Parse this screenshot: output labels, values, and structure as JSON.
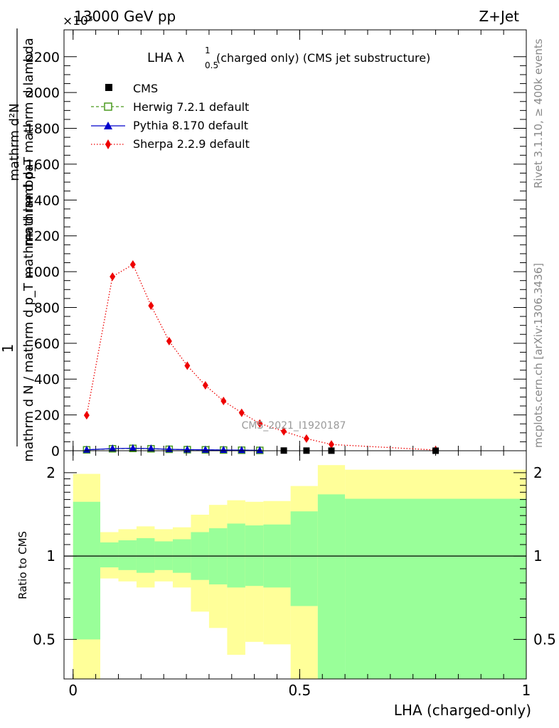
{
  "header": {
    "left": "13000 GeV pp",
    "right": "Z+Jet",
    "exponent": "×10³"
  },
  "side_labels": {
    "rivet": "Rivet 3.1.10, ≥ 400k events",
    "mcplots": "mcplots.cern.ch [arXiv:1306.3436]"
  },
  "chart_data": [
    {
      "type": "line",
      "title_main": "LHA λ",
      "title_sup": "1",
      "title_sub": "0.5",
      "title_rest": "(charged only) (CMS jet substructure)",
      "watermark": "CMS_2021_I1920187",
      "ylabel_top": "mathrm d²N",
      "ylabel_mid": "1",
      "ylabel_bottom": "mathrm d N / mathrm d p_T mathrm d lambda",
      "ylabel_middle2": "mathrm d p_T mathrm d lambda",
      "ylim": [
        0,
        2350
      ],
      "yticks": [
        0,
        200,
        400,
        600,
        800,
        1000,
        1200,
        1400,
        1600,
        1800,
        2000,
        2200
      ],
      "xlim": [
        -0.02,
        1.0
      ],
      "legend": [
        {
          "name": "CMS",
          "color": "#000000"
        },
        {
          "name": "Herwig 7.2.1 default",
          "color": "#4a9a1f"
        },
        {
          "name": "Pythia 8.170 default",
          "color": "#0000cc"
        },
        {
          "name": "Sherpa 2.2.9 default",
          "color": "#ee0000"
        }
      ],
      "series": [
        {
          "name": "Sherpa 2.2.9 default",
          "x": [
            0.03,
            0.087,
            0.132,
            0.172,
            0.212,
            0.252,
            0.292,
            0.332,
            0.372,
            0.412,
            0.465,
            0.515,
            0.57,
            0.8
          ],
          "y": [
            198,
            972,
            1040,
            810,
            612,
            475,
            365,
            278,
            212,
            152,
            108,
            68,
            35,
            4
          ]
        },
        {
          "name": "CMS",
          "x": [
            0.03,
            0.087,
            0.132,
            0.172,
            0.212,
            0.252,
            0.292,
            0.332,
            0.372,
            0.412,
            0.465,
            0.515,
            0.57,
            0.8
          ],
          "y": [
            4,
            10,
            12,
            10,
            7,
            5,
            4,
            3,
            2,
            1.5,
            1,
            0.7,
            0.4,
            0.1
          ]
        },
        {
          "name": "Herwig 7.2.1 default",
          "x": [
            0.03,
            0.087,
            0.132,
            0.172,
            0.212,
            0.252,
            0.292,
            0.332,
            0.372,
            0.412
          ],
          "y": [
            5,
            11,
            13,
            11,
            8,
            6,
            5,
            4,
            3,
            2
          ]
        },
        {
          "name": "Pythia 8.170 default",
          "x": [
            0.03,
            0.087,
            0.132,
            0.172,
            0.212,
            0.252,
            0.292,
            0.332,
            0.372,
            0.412
          ],
          "y": [
            5,
            12,
            14,
            12,
            8,
            6,
            5,
            4,
            3,
            2
          ]
        }
      ]
    },
    {
      "type": "area",
      "ylabel": "Ratio to CMS",
      "xlabel": "LHA (charged-only)",
      "ylim": [
        0.36,
        2.4
      ],
      "ytick_labels": [
        "0.5",
        "1",
        "2"
      ],
      "ytick_values": [
        0.5,
        1,
        2
      ],
      "xtick_labels": [
        "0",
        "0.5",
        "1"
      ],
      "xtick_values": [
        0,
        0.5,
        1
      ],
      "xlim": [
        -0.02,
        1.0
      ],
      "bins": [
        0,
        0.06,
        0.1,
        0.14,
        0.18,
        0.22,
        0.26,
        0.3,
        0.34,
        0.38,
        0.42,
        0.48,
        0.54,
        0.6,
        1.0
      ],
      "green_upper": [
        1.57,
        1.12,
        1.14,
        1.16,
        1.13,
        1.15,
        1.22,
        1.26,
        1.31,
        1.29,
        1.3,
        1.45,
        1.67,
        1.61
      ],
      "green_lower": [
        0.5,
        0.91,
        0.89,
        0.87,
        0.89,
        0.87,
        0.82,
        0.79,
        0.77,
        0.78,
        0.77,
        0.66,
        0.36,
        0.36
      ],
      "yellow_upper": [
        1.98,
        1.22,
        1.25,
        1.28,
        1.25,
        1.27,
        1.41,
        1.53,
        1.59,
        1.57,
        1.58,
        1.79,
        2.13,
        2.05
      ],
      "yellow_lower": [
        0.36,
        0.83,
        0.81,
        0.77,
        0.81,
        0.77,
        0.63,
        0.55,
        0.44,
        0.49,
        0.48,
        0.36,
        0.36,
        0.45
      ]
    }
  ]
}
